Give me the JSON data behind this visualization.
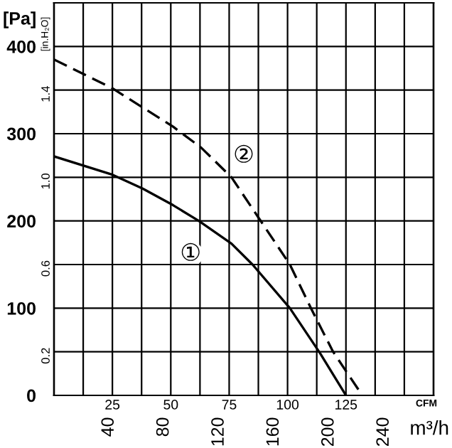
{
  "chart_data": {
    "type": "line",
    "ylabel": "[Pa]",
    "y2label": "[in.H₂O]",
    "xlabel": "CFM",
    "x2label": "m³/h",
    "xlim": [
      0,
      162.5
    ],
    "xticks": [
      {
        "value": 12.5,
        "label": null
      },
      25,
      {
        "value": 37.5,
        "label": null
      },
      50,
      {
        "value": 62.5,
        "label": null
      },
      75,
      {
        "value": 87.5,
        "label": null
      },
      100,
      {
        "value": 112.5,
        "label": null
      },
      125,
      {
        "value": 137.5,
        "label": null
      },
      {
        "value": 150,
        "label": null
      }
    ],
    "x2lim": [
      0,
      276
    ],
    "x2ticks": [
      40,
      80,
      120,
      160,
      200,
      240
    ],
    "ylim": [
      0,
      450
    ],
    "yticks": [
      0,
      100,
      200,
      300,
      400
    ],
    "y2lim": [
      0,
      1.8
    ],
    "y2ticks": [
      0.2,
      0.6,
      {
        "value": 1.0,
        "label": "1.0"
      },
      1.4
    ],
    "grid": true,
    "series": [
      {
        "color": "#000000",
        "line_style": "solid",
        "x": [
          0,
          25,
          38,
          51,
          62,
          76,
          85,
          101,
          114,
          125
        ],
        "values": [
          274,
          253,
          237,
          218,
          200,
          174,
          150,
          100,
          48,
          0
        ]
      },
      {
        "color": "#000000",
        "line_style": "dashed",
        "x": [
          0,
          25,
          51,
          63,
          76,
          88,
          101,
          110,
          119.5,
          132
        ],
        "values": [
          385,
          352,
          308,
          284,
          250,
          202,
          150,
          100,
          50,
          0
        ]
      }
    ],
    "annotations": [
      "①",
      "②"
    ]
  }
}
